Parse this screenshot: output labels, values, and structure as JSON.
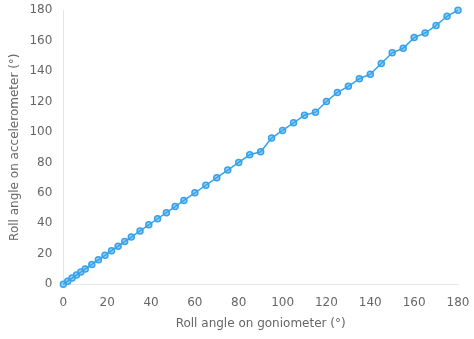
{
  "chart_data": {
    "type": "line",
    "xlabel": "Roll angle on goniometer (°)",
    "ylabel": "Roll angle on accelerometer (°)",
    "x": [
      0,
      2,
      4,
      6,
      8,
      10,
      13,
      16,
      19,
      22,
      25,
      28,
      31,
      35,
      39,
      43,
      47,
      51,
      55,
      60,
      65,
      70,
      75,
      80,
      85,
      90,
      95,
      100,
      105,
      110,
      115,
      120,
      125,
      130,
      135,
      140,
      145,
      150,
      155,
      160,
      165,
      170,
      175,
      180
    ],
    "values": [
      0,
      2,
      4,
      6,
      8,
      10,
      13,
      16,
      19,
      22,
      25,
      28,
      31,
      35,
      39,
      43,
      47,
      51,
      55,
      60,
      65,
      70,
      75,
      80,
      85,
      87,
      96,
      101,
      106,
      111,
      113,
      120,
      126,
      130,
      135,
      138,
      145,
      152,
      155,
      162,
      165,
      170,
      176,
      180
    ],
    "xlim": [
      0,
      180
    ],
    "ylim": [
      0,
      180
    ],
    "xticks": [
      0,
      20,
      40,
      60,
      80,
      100,
      120,
      140,
      160,
      180
    ],
    "yticks": [
      0,
      20,
      40,
      60,
      80,
      100,
      120,
      140,
      160,
      180
    ],
    "marker": "circle",
    "grid": false
  }
}
